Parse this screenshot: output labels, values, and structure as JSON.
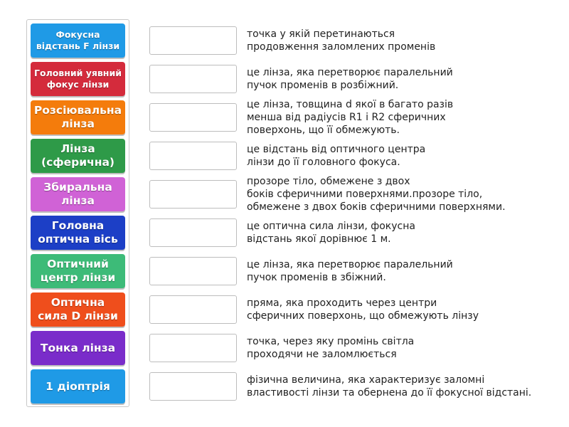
{
  "tiles": [
    [
      "Фокусна",
      "відстань F лінзи"
    ],
    [
      "Головний уявний",
      "фокус лінзи"
    ],
    [
      "Розсіювальна",
      "лінза"
    ],
    [
      "Лінза",
      "(сферична)"
    ],
    [
      "Збиральна",
      "лінза"
    ],
    [
      "Головна",
      "оптична вісь"
    ],
    [
      "Оптичний",
      "центр лінзи"
    ],
    [
      "Оптична",
      "сила D лінзи"
    ],
    [
      "Тонка лінза"
    ],
    [
      "1 діоптрія"
    ]
  ],
  "descriptions": [
    [
      "точка у якій перетинаються",
      "продовження заломлених променів"
    ],
    [
      "це лінза, яка перетворює паралельний",
      "пучок променів в розбіжний."
    ],
    [
      "це лінза, товщина d якої в багато разів",
      "менша від радіусів R1 і R2 сферичних",
      "поверхонь, що її обмежують."
    ],
    [
      "це відстань від оптичного центра",
      "лінзи до її головного фокуса."
    ],
    [
      "прозоре тіло, обмежене з двох",
      "боків сферичними поверхнями.прозоре тіло,",
      "обмежене з двох боків сферичними поверхнями."
    ],
    [
      "це оптична сила лінзи, фокусна",
      "відстань якої дорівнює 1 м."
    ],
    [
      "це лінза, яка перетворює паралельний",
      "пучок променів в збіжний."
    ],
    [
      "пряма, яка проходить через центри",
      "сферичних поверхонь, що обмежують лінзу"
    ],
    [
      "точка, через яку промінь світла",
      "проходячи не заломлюється"
    ],
    [
      "фізична величина, яка характеризує заломні",
      "властивості лінзи та обернена до її фокусної відстані."
    ]
  ]
}
